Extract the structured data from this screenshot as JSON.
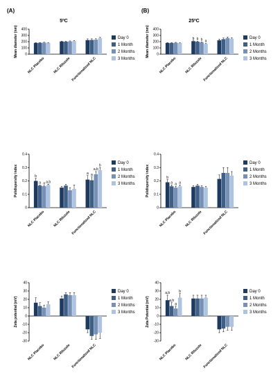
{
  "header": {
    "panel_a": "(A)",
    "panel_b": "(B)",
    "temp_a": "5ºC",
    "temp_b": "25ºC"
  },
  "legend": {
    "entries": [
      "Day 0",
      "1 Month",
      "2 Months",
      "3 Months"
    ]
  },
  "colors": {
    "day0": "#1f3a5f",
    "month1": "#3f5f86",
    "month2": "#7690b6",
    "month3": "#aec3e0"
  },
  "chart_data": [
    {
      "type": "bar",
      "panel": "A",
      "ylabel": "Mean diameter (nm)",
      "ylim": [
        0,
        400
      ],
      "yticks": [
        0,
        100,
        200,
        300,
        400
      ],
      "categories": [
        "NLC Placebo",
        "NLC Riluzole",
        "Functionalized NLC"
      ],
      "series": [
        {
          "name": "Day 0",
          "values": [
            180,
            203,
            225
          ],
          "errors": [
            5,
            6,
            20
          ]
        },
        {
          "name": "1 Month",
          "values": [
            182,
            200,
            228
          ],
          "errors": [
            5,
            8,
            18
          ]
        },
        {
          "name": "2 Months",
          "values": [
            185,
            205,
            232
          ],
          "errors": [
            6,
            7,
            15
          ]
        },
        {
          "name": "3 Months",
          "values": [
            180,
            208,
            255
          ],
          "errors": [
            6,
            10,
            15
          ]
        }
      ],
      "annotations": [
        [],
        [],
        []
      ]
    },
    {
      "type": "bar",
      "panel": "B",
      "ylabel": "Mean diameter (nm)",
      "ylim": [
        0,
        400
      ],
      "yticks": [
        0,
        100,
        200,
        300,
        400
      ],
      "categories": [
        "NLC Placebo",
        "NLC Riluzole",
        "Functionalized NLC"
      ],
      "series": [
        {
          "name": "Day 0",
          "values": [
            180,
            208,
            222
          ],
          "errors": [
            5,
            6,
            20
          ]
        },
        {
          "name": "1 Month",
          "values": [
            180,
            200,
            240
          ],
          "errors": [
            5,
            6,
            18
          ]
        },
        {
          "name": "2 Months",
          "values": [
            183,
            190,
            258
          ],
          "errors": [
            6,
            6,
            15
          ]
        },
        {
          "name": "3 Months",
          "values": [
            178,
            165,
            248
          ],
          "errors": [
            6,
            8,
            15
          ]
        }
      ],
      "annotations": [
        [
          "",
          "",
          "",
          ""
        ],
        [
          "b",
          "b",
          "b",
          "a"
        ],
        [
          "",
          "",
          "",
          ""
        ]
      ]
    },
    {
      "type": "bar",
      "panel": "A",
      "ylabel": "Polidispersity index",
      "ylim": [
        0,
        0.4
      ],
      "yticks": [
        0.0,
        0.1,
        0.2,
        0.3,
        0.4
      ],
      "categories": [
        "NLC Placebo",
        "NLC Riluzole",
        "Functionalized NLC"
      ],
      "series": [
        {
          "name": "Day 0",
          "values": [
            0.2,
            0.15,
            0.21
          ],
          "errors": [
            0.02,
            0.01,
            0.03
          ]
        },
        {
          "name": "1 Month",
          "values": [
            0.165,
            0.165,
            0.205
          ],
          "errors": [
            0.005,
            0.01,
            0.025
          ]
        },
        {
          "name": "2 Months",
          "values": [
            0.16,
            0.13,
            0.25
          ],
          "errors": [
            0.005,
            0.02,
            0.02
          ]
        },
        {
          "name": "3 Months",
          "values": [
            0.17,
            0.14,
            0.28
          ],
          "errors": [
            0.005,
            0.03,
            0.02
          ]
        }
      ],
      "annotations": [
        [
          "b",
          "a",
          "a",
          "a,b"
        ],
        [
          "",
          "",
          "",
          ""
        ],
        [
          "a",
          "a",
          "a,b",
          "b"
        ]
      ]
    },
    {
      "type": "bar",
      "panel": "B",
      "ylabel": "Polidispersity index",
      "ylim": [
        0,
        0.4
      ],
      "yticks": [
        0.0,
        0.1,
        0.2,
        0.3,
        0.4
      ],
      "categories": [
        "NLC Placebo",
        "NLC Riluzole",
        "Functionalized NLC"
      ],
      "series": [
        {
          "name": "Day 0",
          "values": [
            0.19,
            0.155,
            0.215
          ],
          "errors": [
            0.02,
            0.01,
            0.03
          ]
        },
        {
          "name": "1 Month",
          "values": [
            0.16,
            0.165,
            0.26
          ],
          "errors": [
            0.01,
            0.01,
            0.04
          ]
        },
        {
          "name": "2 Months",
          "values": [
            0.15,
            0.155,
            0.26
          ],
          "errors": [
            0.01,
            0.01,
            0.04
          ]
        },
        {
          "name": "3 Months",
          "values": [
            0.16,
            0.15,
            0.24
          ],
          "errors": [
            0.01,
            0.01,
            0.03
          ]
        }
      ],
      "annotations": [
        [
          "b",
          "a",
          "a",
          "a"
        ],
        [
          "",
          "",
          "",
          ""
        ],
        [
          "",
          "",
          "",
          ""
        ]
      ]
    },
    {
      "type": "bar",
      "panel": "A",
      "ylabel": "Zeta potential (mV)",
      "ylim": [
        -30,
        40
      ],
      "yticks": [
        -30,
        -20,
        -10,
        0,
        10,
        20,
        30,
        40
      ],
      "categories": [
        "NLC Placebo",
        "NLC Riluzole",
        "Functionalized NLC"
      ],
      "series": [
        {
          "name": "Day 0",
          "values": [
            16,
            21,
            -16
          ],
          "errors": [
            6,
            3,
            4
          ]
        },
        {
          "name": "1 Month",
          "values": [
            12,
            26,
            -24
          ],
          "errors": [
            4,
            2,
            4
          ]
        },
        {
          "name": "2 Months",
          "values": [
            10,
            25,
            -22
          ],
          "errors": [
            3,
            3,
            6
          ]
        },
        {
          "name": "3 Months",
          "values": [
            14,
            25,
            -20
          ],
          "errors": [
            3,
            3,
            7
          ]
        }
      ],
      "annotations": [
        [],
        [],
        []
      ]
    },
    {
      "type": "bar",
      "panel": "B",
      "ylabel": "Zeta Potential (mV)",
      "ylim": [
        -30,
        40
      ],
      "yticks": [
        -30,
        -20,
        -10,
        0,
        10,
        20,
        30,
        40
      ],
      "categories": [
        "NLC Placebo",
        "NLC Riluzole",
        "Functionalized NLC"
      ],
      "series": [
        {
          "name": "Day 0",
          "values": [
            19,
            21,
            -16
          ],
          "errors": [
            6,
            4,
            4
          ]
        },
        {
          "name": "1 Month",
          "values": [
            12,
            21,
            -15
          ],
          "errors": [
            4,
            4,
            4
          ]
        },
        {
          "name": "2 Months",
          "values": [
            9,
            21,
            -13
          ],
          "errors": [
            3,
            4,
            4
          ]
        },
        {
          "name": "3 Months",
          "values": [
            22,
            22,
            -13
          ],
          "errors": [
            5,
            3,
            4
          ]
        }
      ],
      "annotations": [
        [
          "a,b",
          "a,b",
          "a",
          "b"
        ],
        [
          "",
          "",
          "",
          ""
        ],
        [
          "",
          "",
          "",
          ""
        ]
      ]
    }
  ]
}
